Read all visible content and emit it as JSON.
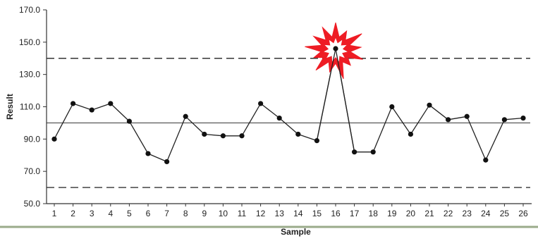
{
  "chart_data": {
    "type": "line",
    "title": "",
    "xlabel": "Sample",
    "ylabel": "Result",
    "ylim": [
      50,
      170
    ],
    "yticks": [
      50,
      70,
      90,
      110,
      130,
      150,
      170
    ],
    "ytick_labels": [
      "50.0",
      "70.0",
      "90.0",
      "110.0",
      "130.0",
      "150.0",
      "170.0"
    ],
    "x": [
      1,
      2,
      3,
      4,
      5,
      6,
      7,
      8,
      9,
      10,
      11,
      12,
      13,
      14,
      15,
      16,
      17,
      18,
      19,
      20,
      21,
      22,
      23,
      24,
      25,
      26
    ],
    "xtick_labels": [
      "1",
      "2",
      "3",
      "4",
      "5",
      "6",
      "7",
      "8",
      "9",
      "10",
      "11",
      "12",
      "13",
      "14",
      "15",
      "16",
      "17",
      "18",
      "19",
      "20",
      "21",
      "22",
      "23",
      "24",
      "25",
      "26"
    ],
    "series": [
      {
        "values": [
          90,
          112,
          108,
          112,
          101,
          81,
          76,
          104,
          93,
          92,
          92,
          112,
          103,
          93,
          89,
          146,
          82,
          82,
          110,
          93,
          111,
          102,
          104,
          77,
          102,
          103
        ]
      }
    ],
    "reference_lines": [
      {
        "y": 140,
        "style": "dashed"
      },
      {
        "y": 100,
        "style": "solid"
      },
      {
        "y": 60,
        "style": "dashed"
      }
    ],
    "highlighted_point": {
      "x": 16,
      "y": 146,
      "marker": "red-starburst"
    },
    "colors": {
      "line": "#222222",
      "points": "#111111",
      "burst": "#ee1c24",
      "rule": "#9aab8a"
    }
  }
}
